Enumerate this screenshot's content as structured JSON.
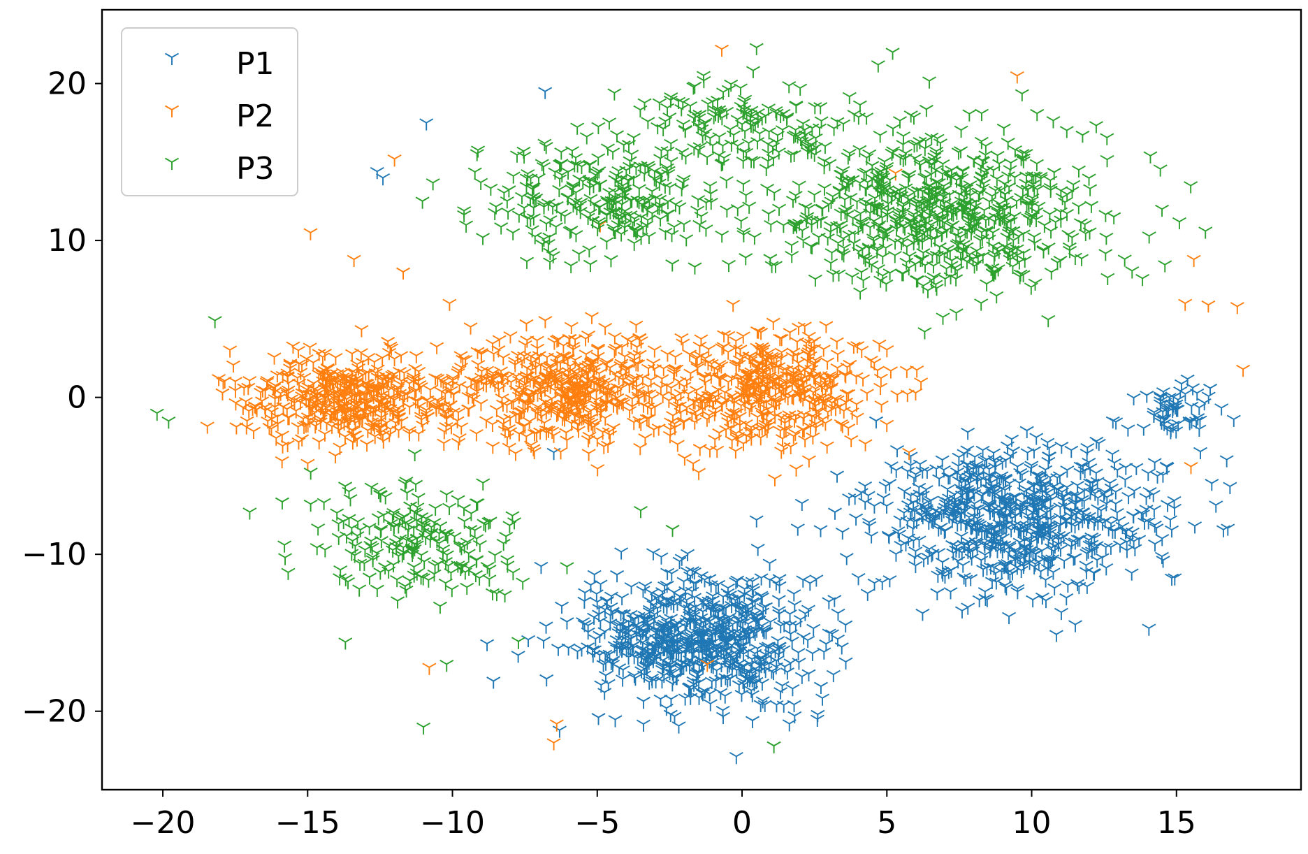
{
  "chart_data": {
    "type": "scatter",
    "marker": "tri_down",
    "title": "",
    "xlabel": "",
    "ylabel": "",
    "xlim": [
      -22.1,
      19.3
    ],
    "ylim": [
      -25.0,
      24.7
    ],
    "xticks": [
      -20,
      -15,
      -10,
      -5,
      0,
      5,
      10,
      15
    ],
    "yticks": [
      -20,
      -10,
      0,
      10,
      20
    ],
    "xtick_labels": [
      "−20",
      "−15",
      "−10",
      "−5",
      "0",
      "5",
      "10",
      "15"
    ],
    "ytick_labels": [
      "−20",
      "−10",
      "0",
      "10",
      "20"
    ],
    "grid": false,
    "legend_position": "top-left",
    "series": [
      {
        "name": "P1",
        "color": "#1f77b4",
        "clusters": [
          {
            "center": [
              -1.5,
              -15.5
            ],
            "spread": [
              3.4,
              3.3
            ],
            "count": 700
          },
          {
            "center": [
              9.5,
              -7.5
            ],
            "spread": [
              4.0,
              3.6
            ],
            "count": 700
          },
          {
            "center": [
              15.0,
              -1.0
            ],
            "spread": [
              1.2,
              1.6
            ],
            "count": 60
          }
        ],
        "points": [
          [
            -6.8,
            19.5
          ],
          [
            -10.9,
            17.5
          ],
          [
            -12.6,
            14.4
          ],
          [
            -12.4,
            14.0
          ],
          [
            -6.5,
            -3.5
          ],
          [
            2.6,
            -20.5
          ],
          [
            -6.3,
            -21.2
          ],
          [
            0.5,
            -7.8
          ]
        ]
      },
      {
        "name": "P2",
        "color": "#ff7f0e",
        "clusters": [
          {
            "center": [
              -13.5,
              0.0
            ],
            "spread": [
              3.0,
              2.4
            ],
            "count": 450
          },
          {
            "center": [
              -6.0,
              0.5
            ],
            "spread": [
              2.8,
              2.8
            ],
            "count": 450
          },
          {
            "center": [
              1.0,
              0.5
            ],
            "spread": [
              3.0,
              3.0
            ],
            "count": 450
          }
        ],
        "points": [
          [
            -14.9,
            10.5
          ],
          [
            -13.4,
            8.8
          ],
          [
            -12.0,
            15.2
          ],
          [
            -11.7,
            8.0
          ],
          [
            -10.1,
            6.0
          ],
          [
            -0.7,
            22.2
          ],
          [
            9.5,
            20.5
          ],
          [
            15.6,
            8.8
          ],
          [
            15.3,
            6.0
          ],
          [
            16.1,
            5.9
          ],
          [
            17.1,
            5.8
          ],
          [
            17.3,
            1.8
          ],
          [
            15.5,
            -4.4
          ],
          [
            -10.8,
            -17.2
          ],
          [
            -6.4,
            -20.8
          ],
          [
            -6.5,
            -22.0
          ],
          [
            -1.2,
            -17.0
          ],
          [
            5.3,
            14.3
          ],
          [
            -4.9,
            11.0
          ]
        ]
      },
      {
        "name": "P3",
        "color": "#2ca02c",
        "clusters": [
          {
            "center": [
              7.0,
              12.0
            ],
            "spread": [
              4.5,
              4.0
            ],
            "count": 650
          },
          {
            "center": [
              -5.0,
              12.5
            ],
            "spread": [
              3.5,
              3.0
            ],
            "count": 260
          },
          {
            "center": [
              -0.5,
              17.5
            ],
            "spread": [
              3.0,
              2.2
            ],
            "count": 150
          },
          {
            "center": [
              -11.5,
              -9.0
            ],
            "spread": [
              3.0,
              3.0
            ],
            "count": 200
          }
        ],
        "points": [
          [
            -20.2,
            -1.0
          ],
          [
            -19.8,
            -1.5
          ],
          [
            -18.2,
            4.9
          ],
          [
            -17.0,
            -7.3
          ],
          [
            -15.8,
            -9.4
          ],
          [
            -11.0,
            -21.0
          ],
          [
            -10.2,
            -17.0
          ],
          [
            -3.5,
            -7.2
          ],
          [
            -2.4,
            -8.4
          ],
          [
            1.1,
            -22.2
          ],
          [
            0.5,
            22.3
          ],
          [
            4.7,
            21.2
          ],
          [
            5.2,
            22.0
          ],
          [
            14.1,
            15.4
          ],
          [
            14.5,
            12.0
          ],
          [
            15.1,
            11.2
          ],
          [
            16.0,
            10.6
          ],
          [
            -7.6,
            12.8
          ],
          [
            -9.6,
            11.9
          ]
        ]
      }
    ]
  }
}
